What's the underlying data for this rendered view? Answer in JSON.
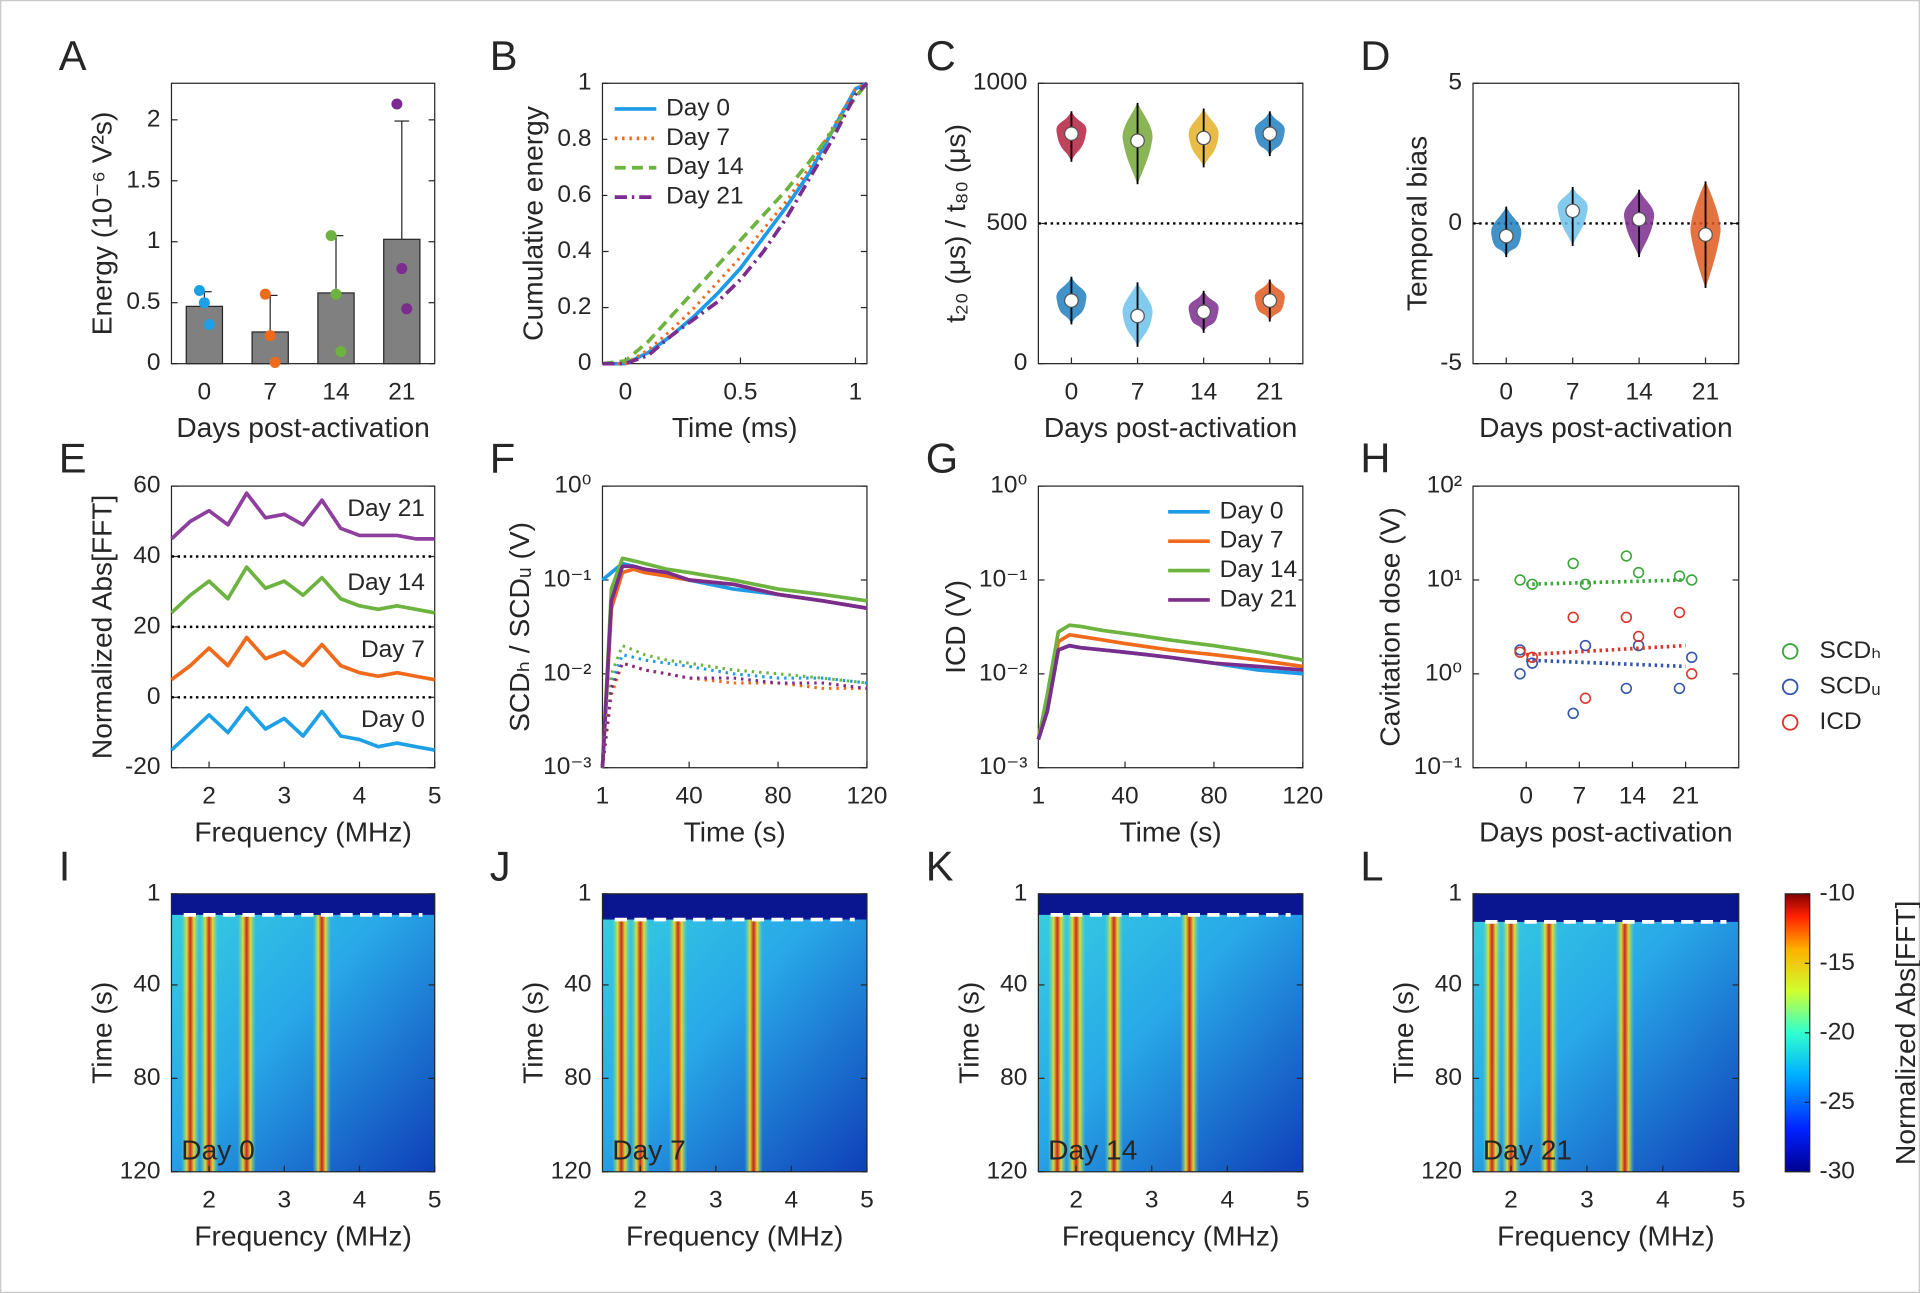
{
  "chart_data": [
    {
      "type": "bar",
      "panel": "A",
      "ylabel": "Energy (10⁻⁶ V²s)",
      "xlabel": "Days post-activation",
      "categories": [
        "0",
        "7",
        "14",
        "21"
      ],
      "values": [
        0.47,
        0.26,
        0.58,
        1.02
      ],
      "errors": [
        0.12,
        0.3,
        0.47,
        0.97
      ],
      "points": [
        [
          0.6,
          0.5,
          0.32
        ],
        [
          0.57,
          0.23,
          0.01
        ],
        [
          1.05,
          0.57,
          0.1
        ],
        [
          2.13,
          0.78,
          0.45
        ]
      ],
      "point_colors": [
        "#1ea0e6",
        "#f06a1c",
        "#6db33f",
        "#7b2d8e"
      ],
      "color": "#808080",
      "ylim": [
        0,
        2.3
      ],
      "yticks": [
        0,
        0.5,
        1,
        1.5,
        2
      ]
    },
    {
      "type": "line",
      "panel": "B",
      "ylabel": "Cumulative energy",
      "xlabel": "Time (ms)",
      "legend": "northwest",
      "x": [
        -0.1,
        0,
        0.1,
        0.2,
        0.3,
        0.4,
        0.5,
        0.6,
        0.7,
        0.8,
        0.9,
        1,
        1.05
      ],
      "series": [
        {
          "name": "Day 0",
          "color": "#1e9be6",
          "dash": "solid",
          "values": [
            0,
            0,
            0.04,
            0.1,
            0.17,
            0.25,
            0.34,
            0.45,
            0.56,
            0.68,
            0.83,
            0.98,
            1
          ]
        },
        {
          "name": "Day 7",
          "color": "#f06a1c",
          "dash": "dotted",
          "values": [
            0,
            0,
            0.05,
            0.12,
            0.2,
            0.29,
            0.38,
            0.48,
            0.58,
            0.7,
            0.84,
            0.98,
            1
          ]
        },
        {
          "name": "Day 14",
          "color": "#6db33f",
          "dash": "dashed",
          "values": [
            0,
            0.01,
            0.08,
            0.17,
            0.26,
            0.35,
            0.44,
            0.53,
            0.62,
            0.72,
            0.83,
            0.95,
            1
          ]
        },
        {
          "name": "Day 21",
          "color": "#7b2d8e",
          "dash": "dashdot",
          "values": [
            0,
            0,
            0.03,
            0.1,
            0.16,
            0.22,
            0.3,
            0.4,
            0.52,
            0.66,
            0.8,
            0.96,
            1
          ]
        }
      ],
      "xlim": [
        -0.1,
        1.05
      ],
      "xticks": [
        0,
        0.5,
        1
      ],
      "ylim": [
        0,
        1
      ],
      "yticks": [
        0,
        0.2,
        0.4,
        0.6,
        0.8,
        1
      ]
    },
    {
      "type": "violin",
      "panel": "C",
      "ylabel": "t₂₀ (μs)  /  t₈₀ (μs)",
      "xlabel": "Days post-activation",
      "categories": [
        "0",
        "7",
        "14",
        "21"
      ],
      "refs": [
        500
      ],
      "series": [
        {
          "colors": [
            "#b5213f",
            "#76a83a",
            "#e3b027",
            "#1e7fc0"
          ],
          "values": [
            820,
            795,
            805,
            820
          ],
          "whisker_low": [
            720,
            640,
            700,
            740
          ],
          "whisker_high": [
            900,
            930,
            910,
            900
          ]
        },
        {
          "colors": [
            "#1e7fc0",
            "#6cc2ec",
            "#7b2d8e",
            "#e05a20"
          ],
          "values": [
            225,
            170,
            185,
            225
          ],
          "whisker_low": [
            140,
            60,
            110,
            150
          ],
          "whisker_high": [
            310,
            290,
            260,
            300
          ]
        }
      ],
      "ylim": [
        0,
        1000
      ],
      "yticks": [
        0,
        500,
        1000
      ]
    },
    {
      "type": "violin",
      "panel": "D",
      "ylabel": "Temporal bias",
      "xlabel": "Days post-activation",
      "categories": [
        "0",
        "7",
        "14",
        "21"
      ],
      "refs": [
        0
      ],
      "series": [
        {
          "colors": [
            "#1e7fc0",
            "#6cc2ec",
            "#7b2d8e",
            "#e05a20"
          ],
          "values": [
            -0.45,
            0.45,
            0.15,
            -0.4
          ],
          "whisker_low": [
            -1.2,
            -0.8,
            -1.2,
            -2.3
          ],
          "whisker_high": [
            0.6,
            1.3,
            1.2,
            1.5
          ]
        }
      ],
      "ylim": [
        -5,
        5
      ],
      "yticks": [
        -5,
        0,
        5
      ]
    },
    {
      "type": "line",
      "panel": "E",
      "ylabel": "Normalized Abs[FFT]",
      "xlabel": "Frequency (MHz)",
      "series_labels": true,
      "refs": [
        0,
        20,
        40
      ],
      "x": [
        1.5,
        1.75,
        2,
        2.25,
        2.5,
        2.75,
        3,
        3.25,
        3.5,
        3.75,
        4,
        4.25,
        4.5,
        4.75,
        5
      ],
      "series": [
        {
          "name": "Day 0",
          "color": "#1ea0e6",
          "dash": "solid",
          "values": [
            -15,
            -10,
            -5,
            -10,
            -3,
            -9,
            -6,
            -11,
            -4,
            -11,
            -12,
            -14,
            -13,
            -14,
            -15
          ]
        },
        {
          "name": "Day 7",
          "color": "#f06a1c",
          "dash": "solid",
          "values": [
            5,
            9,
            14,
            9,
            17,
            11,
            13,
            9,
            15,
            9,
            7,
            6,
            7,
            6,
            5
          ]
        },
        {
          "name": "Day 14",
          "color": "#6db33f",
          "dash": "solid",
          "values": [
            24,
            29,
            33,
            28,
            37,
            31,
            33,
            29,
            34,
            28,
            26,
            25,
            26,
            25,
            24
          ]
        },
        {
          "name": "Day 21",
          "color": "#8e3f9e",
          "dash": "solid",
          "values": [
            45,
            50,
            53,
            49,
            58,
            51,
            52,
            49,
            56,
            48,
            46,
            46,
            46,
            45,
            45
          ]
        }
      ],
      "xlim": [
        1.5,
        5
      ],
      "xticks": [
        2,
        3,
        4,
        5
      ],
      "ylim": [
        -20,
        60
      ],
      "yticks": [
        -20,
        0,
        20,
        40,
        60
      ]
    },
    {
      "type": "line",
      "panel": "F",
      "ylabel": "SCDₕ / SCDᵤ (V)",
      "xlabel": "Time (s)",
      "ylog": true,
      "x": [
        1,
        5,
        10,
        15,
        20,
        30,
        40,
        60,
        80,
        100,
        120
      ],
      "series": [
        {
          "color": "#1e9be6",
          "dash": "solid",
          "values": [
            0.1,
            0.12,
            0.15,
            0.14,
            0.13,
            0.11,
            0.1,
            0.08,
            0.07,
            0.06,
            0.05
          ]
        },
        {
          "color": "#f06a1c",
          "dash": "solid",
          "values": [
            0.001,
            0.05,
            0.12,
            0.13,
            0.12,
            0.11,
            0.1,
            0.09,
            0.07,
            0.06,
            0.05
          ]
        },
        {
          "color": "#6db33f",
          "dash": "solid",
          "values": [
            0.001,
            0.08,
            0.17,
            0.16,
            0.15,
            0.13,
            0.12,
            0.1,
            0.08,
            0.07,
            0.06
          ]
        },
        {
          "color": "#7b2d8e",
          "dash": "solid",
          "values": [
            0.001,
            0.06,
            0.14,
            0.14,
            0.13,
            0.12,
            0.1,
            0.09,
            0.07,
            0.06,
            0.05
          ]
        },
        {
          "color": "#1e9be6",
          "dash": "dotted",
          "values": [
            0.001,
            0.008,
            0.016,
            0.015,
            0.014,
            0.013,
            0.012,
            0.01,
            0.009,
            0.009,
            0.008
          ]
        },
        {
          "color": "#f06a1c",
          "dash": "dotted",
          "values": [
            0.001,
            0.006,
            0.013,
            0.012,
            0.011,
            0.01,
            0.009,
            0.008,
            0.008,
            0.007,
            0.007
          ]
        },
        {
          "color": "#6db33f",
          "dash": "dotted",
          "values": [
            0.001,
            0.01,
            0.02,
            0.018,
            0.016,
            0.014,
            0.013,
            0.011,
            0.01,
            0.009,
            0.008
          ]
        },
        {
          "color": "#7b2d8e",
          "dash": "dotted",
          "values": [
            0.001,
            0.007,
            0.013,
            0.012,
            0.011,
            0.01,
            0.009,
            0.009,
            0.008,
            0.008,
            0.007
          ]
        }
      ],
      "xlim": [
        1,
        120
      ],
      "xticks": [
        1,
        40,
        80,
        120
      ],
      "ylim": [
        0.001,
        1
      ],
      "yticks": [
        {
          "value": 0.001,
          "label": "10⁻³"
        },
        {
          "value": 0.01,
          "label": "10⁻²"
        },
        {
          "value": 0.1,
          "label": "10⁻¹"
        },
        {
          "value": 1,
          "label": "10⁰"
        }
      ]
    },
    {
      "type": "line",
      "panel": "G",
      "ylabel": "ICD (V)",
      "xlabel": "Time (s)",
      "ylog": true,
      "legend": "northeast",
      "x": [
        1,
        5,
        10,
        15,
        20,
        30,
        40,
        60,
        80,
        100,
        120
      ],
      "series": [
        {
          "name": "Day 0",
          "color": "#1e9be6",
          "dash": "solid",
          "values": [
            0.002,
            0.004,
            0.018,
            0.02,
            0.019,
            0.018,
            0.017,
            0.015,
            0.013,
            0.011,
            0.01
          ]
        },
        {
          "name": "Day 7",
          "color": "#f06a1c",
          "dash": "solid",
          "values": [
            0.002,
            0.005,
            0.022,
            0.026,
            0.025,
            0.023,
            0.021,
            0.018,
            0.016,
            0.014,
            0.012
          ]
        },
        {
          "name": "Day 14",
          "color": "#6db33f",
          "dash": "solid",
          "values": [
            0.002,
            0.006,
            0.028,
            0.033,
            0.032,
            0.029,
            0.027,
            0.023,
            0.02,
            0.017,
            0.014
          ]
        },
        {
          "name": "Day 21",
          "color": "#7b2d8e",
          "dash": "solid",
          "values": [
            0.002,
            0.004,
            0.018,
            0.02,
            0.019,
            0.018,
            0.017,
            0.015,
            0.013,
            0.012,
            0.011
          ]
        }
      ],
      "xlim": [
        1,
        120
      ],
      "xticks": [
        1,
        40,
        80,
        120
      ],
      "ylim": [
        0.001,
        1
      ],
      "yticks": [
        {
          "value": 0.001,
          "label": "10⁻³"
        },
        {
          "value": 0.01,
          "label": "10⁻²"
        },
        {
          "value": 0.1,
          "label": "10⁻¹"
        },
        {
          "value": 1,
          "label": "10⁰"
        }
      ]
    },
    {
      "type": "scatter",
      "panel": "H",
      "ylabel": "Cavitation dose (V)",
      "xlabel": "Days post-activation",
      "ylog": true,
      "legend": "outside-right",
      "trend_x": [
        0,
        21
      ],
      "series": [
        {
          "name": "SCDₕ",
          "color": "#3aa63a",
          "x": [
            0,
            0,
            7,
            7,
            14,
            14,
            21,
            21
          ],
          "values": [
            10,
            9,
            15,
            9,
            18,
            12,
            11,
            10
          ],
          "trend": [
            9,
            10
          ]
        },
        {
          "name": "SCDᵤ",
          "color": "#3355aa",
          "x": [
            0,
            0,
            0,
            7,
            7,
            14,
            14,
            21,
            21
          ],
          "values": [
            1.8,
            1.3,
            1,
            2,
            0.38,
            2,
            0.7,
            1.5,
            0.7
          ],
          "trend": [
            1.4,
            1.2
          ]
        },
        {
          "name": "ICD",
          "color": "#d9362b",
          "x": [
            0,
            0,
            7,
            7,
            14,
            14,
            21,
            21
          ],
          "values": [
            1.7,
            1.5,
            4,
            0.55,
            4,
            2.5,
            4.5,
            1
          ],
          "trend": [
            1.6,
            2
          ]
        }
      ],
      "xlim": [
        -7,
        28
      ],
      "xticks": [
        0,
        7,
        14,
        21
      ],
      "ylim": [
        0.1,
        100
      ],
      "yticks": [
        {
          "value": 0.1,
          "label": "10⁻¹"
        },
        {
          "value": 1,
          "label": "10⁰"
        },
        {
          "value": 10,
          "label": "10¹"
        },
        {
          "value": 100,
          "label": "10²"
        }
      ]
    },
    {
      "type": "heatmap",
      "panel": "I",
      "label": "Day 0",
      "ylabel": "Time (s)",
      "xlabel": "Frequency (MHz)",
      "peaks": [
        1.75,
        2,
        2.5,
        3.5
      ],
      "onset": 10,
      "xlim": [
        1.5,
        5
      ],
      "xticks": [
        2,
        3,
        4,
        5
      ],
      "ylim": [
        1,
        120
      ],
      "yreverse": true,
      "yticks": [
        1,
        40,
        80,
        120
      ]
    },
    {
      "type": "heatmap",
      "panel": "J",
      "label": "Day 7",
      "ylabel": "Time (s)",
      "xlabel": "Frequency (MHz)",
      "peaks": [
        1.75,
        2,
        2.5,
        3.5
      ],
      "onset": 12,
      "xlim": [
        1.5,
        5
      ],
      "xticks": [
        2,
        3,
        4,
        5
      ],
      "ylim": [
        1,
        120
      ],
      "yreverse": true,
      "yticks": [
        1,
        40,
        80,
        120
      ]
    },
    {
      "type": "heatmap",
      "panel": "K",
      "label": "Day 14",
      "ylabel": "Time (s)",
      "xlabel": "Frequency (MHz)",
      "peaks": [
        1.75,
        2,
        2.5,
        3.5
      ],
      "onset": 10,
      "xlim": [
        1.5,
        5
      ],
      "xticks": [
        2,
        3,
        4,
        5
      ],
      "ylim": [
        1,
        120
      ],
      "yreverse": true,
      "yticks": [
        1,
        40,
        80,
        120
      ]
    },
    {
      "type": "heatmap",
      "panel": "L",
      "label": "Day 21",
      "ylabel": "Time (s)",
      "xlabel": "Frequency (MHz)",
      "peaks": [
        1.75,
        2,
        2.5,
        3.5
      ],
      "onset": 13,
      "xlim": [
        1.5,
        5
      ],
      "xticks": [
        2,
        3,
        4,
        5
      ],
      "ylim": [
        1,
        120
      ],
      "yreverse": true,
      "yticks": [
        1,
        40,
        80,
        120
      ]
    },
    {
      "type": "colorbar",
      "label": "Normalized Abs[FFT]",
      "ylim": [
        -30,
        -10
      ],
      "yticks": [
        -10,
        -15,
        -20,
        -25,
        -30
      ]
    }
  ]
}
